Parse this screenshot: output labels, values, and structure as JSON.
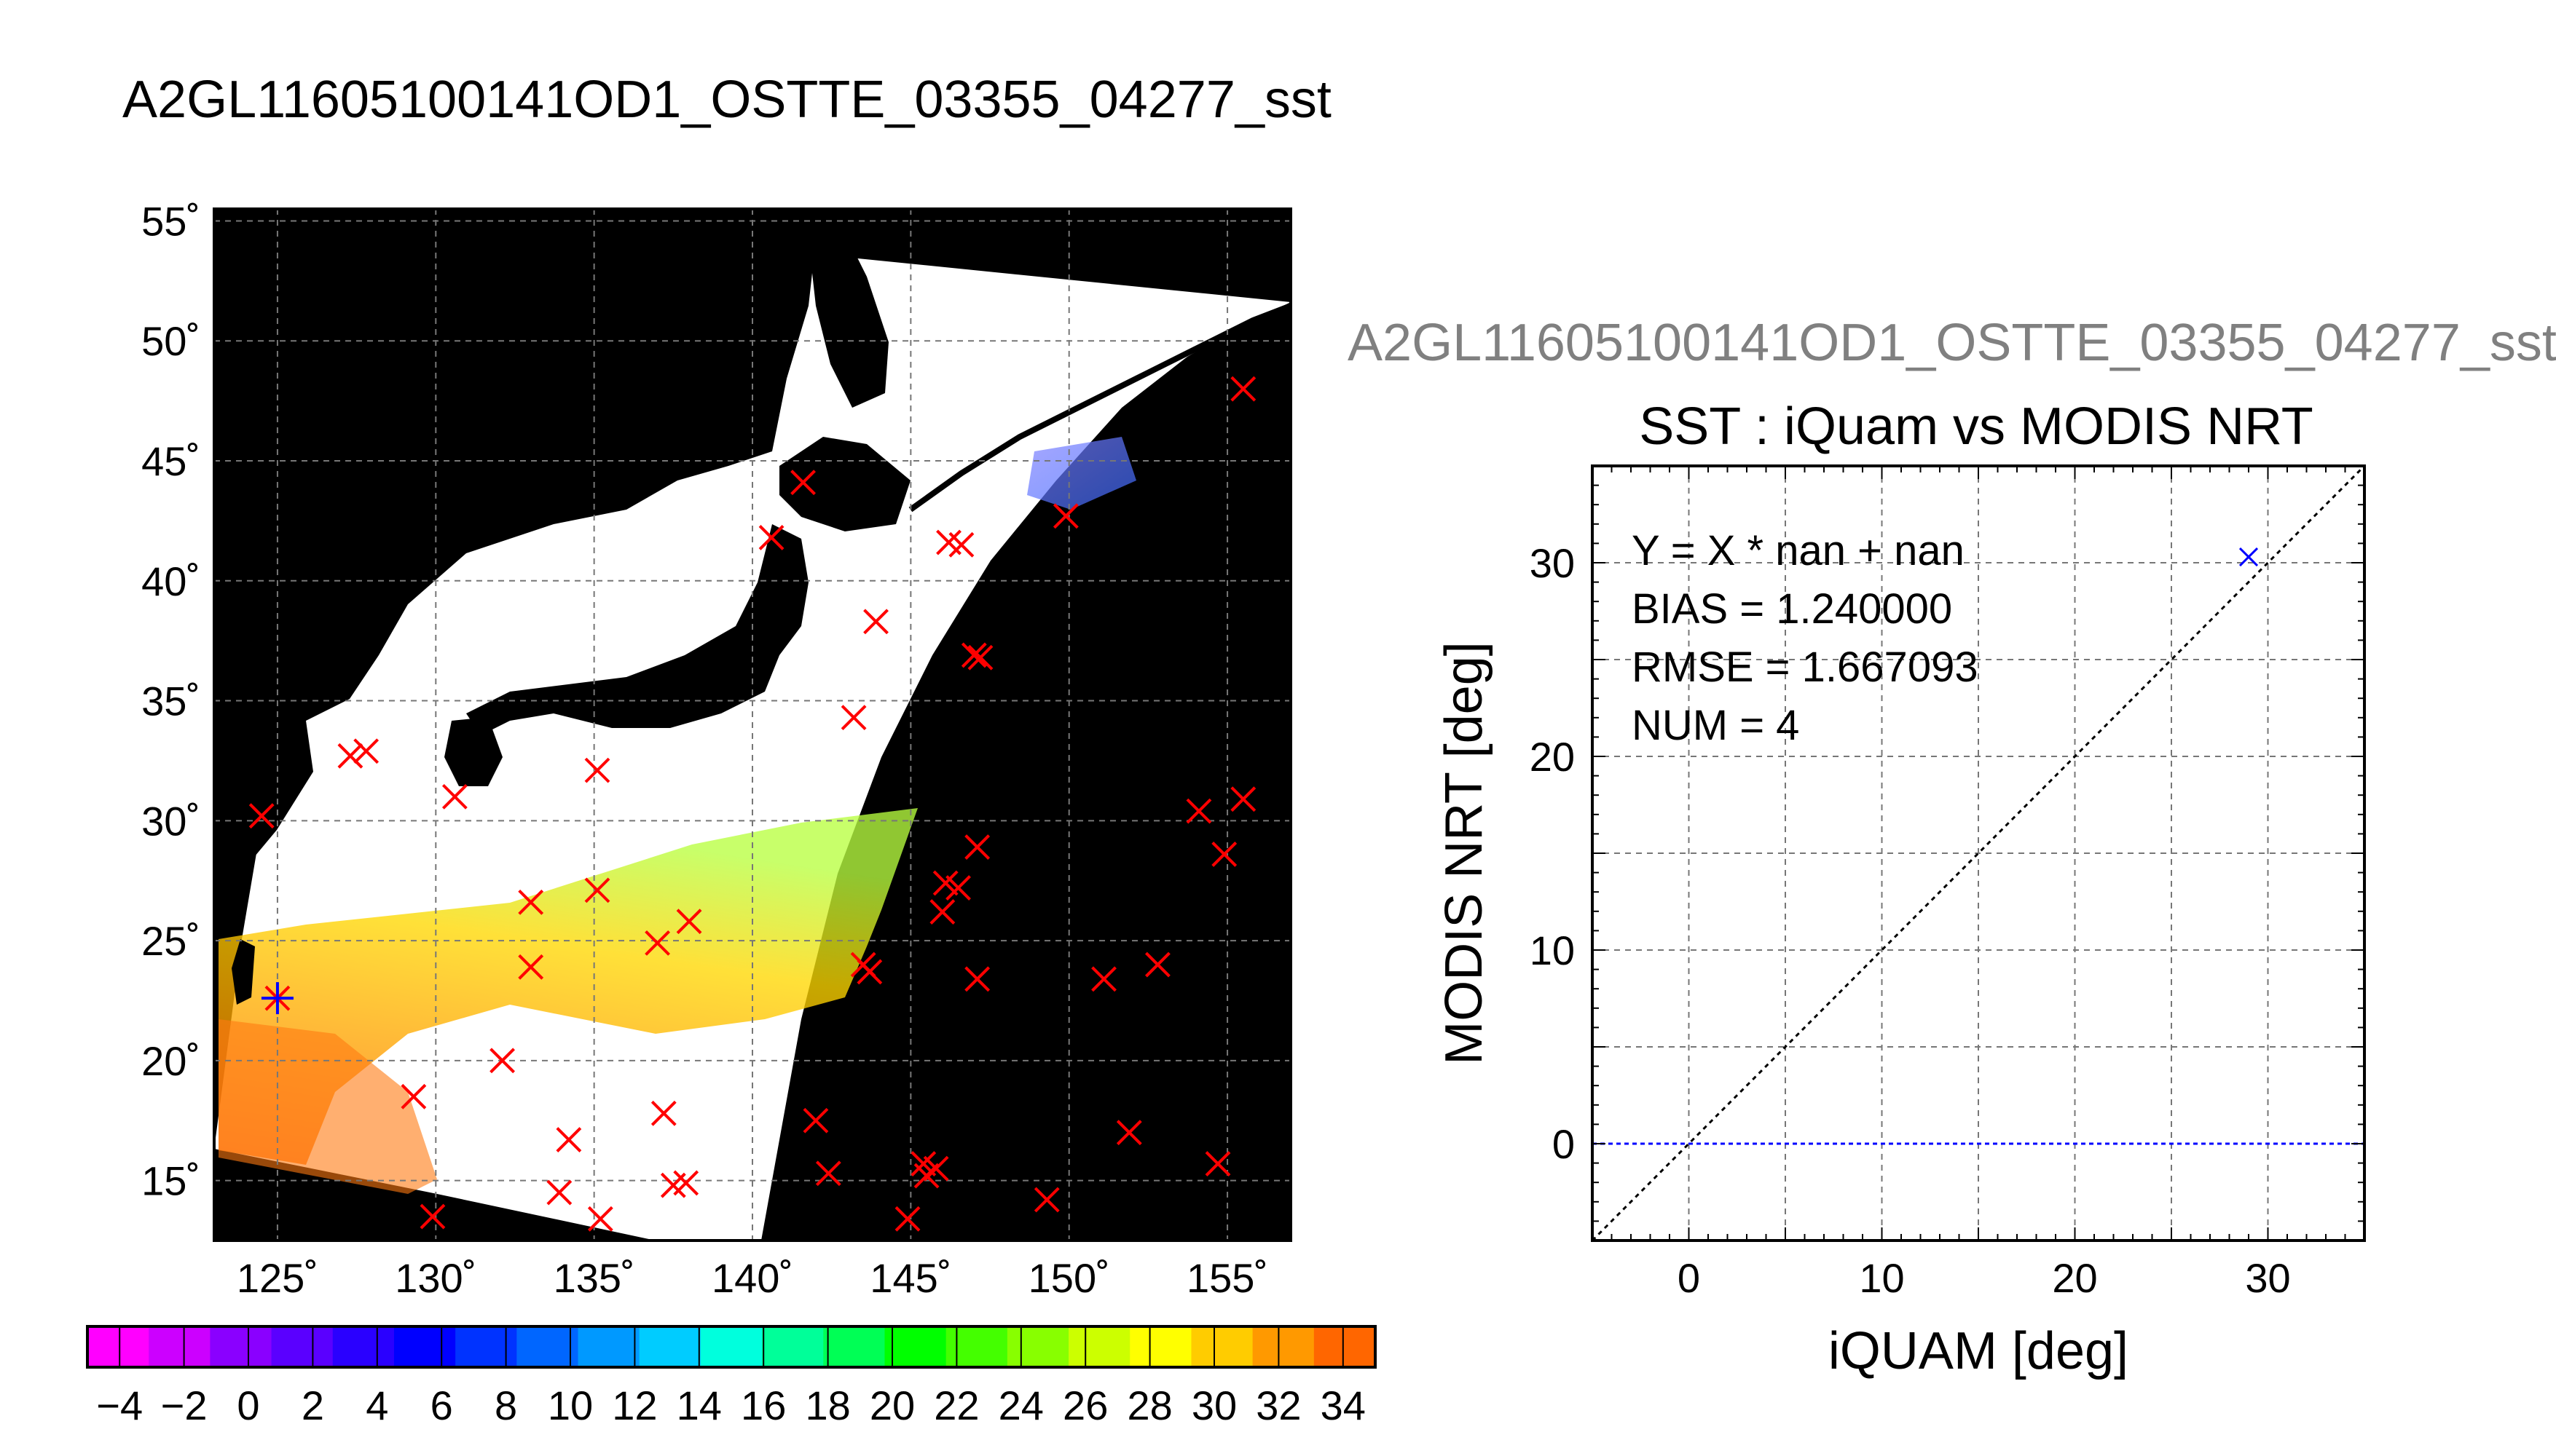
{
  "page_title": "A2GL11605100141OD1_OSTTE_03355_04277_sst",
  "page_subtitle": "A2GL11605100141OD1_OSTTE_03355_04277_sst",
  "chart_data": [
    {
      "type": "map",
      "lon_range": [
        123,
        157
      ],
      "lat_range": [
        12.5,
        55.5
      ],
      "lon_ticks": [
        125,
        130,
        135,
        140,
        145,
        150,
        155
      ],
      "lat_ticks": [
        15,
        20,
        25,
        30,
        35,
        40,
        45,
        50,
        55
      ],
      "lon_labels": [
        "125˚",
        "130˚",
        "135˚",
        "140˚",
        "145˚",
        "150˚",
        "155˚"
      ],
      "lat_labels": [
        "15˚",
        "20˚",
        "25˚",
        "30˚",
        "35˚",
        "40˚",
        "45˚",
        "50˚",
        "55˚"
      ],
      "grid": true,
      "background_color": "#000000",
      "swath_color": "#ffffff",
      "marker_color": "#ff0000",
      "matchup_color": "#0000ff",
      "matchup_point": [
        125.0,
        22.6
      ],
      "red_markers": [
        [
          124.5,
          30.2
        ],
        [
          127.3,
          32.7
        ],
        [
          127.8,
          32.9
        ],
        [
          130.6,
          31.0
        ],
        [
          135.1,
          32.1
        ],
        [
          133.0,
          26.6
        ],
        [
          135.1,
          27.1
        ],
        [
          137.0,
          24.9
        ],
        [
          138.0,
          25.8
        ],
        [
          133.0,
          23.9
        ],
        [
          132.1,
          20.0
        ],
        [
          129.3,
          18.5
        ],
        [
          129.9,
          13.5
        ],
        [
          134.2,
          16.7
        ],
        [
          133.9,
          14.5
        ],
        [
          135.2,
          13.4
        ],
        [
          137.2,
          17.8
        ],
        [
          137.5,
          14.8
        ],
        [
          137.9,
          14.9
        ],
        [
          142.0,
          17.5
        ],
        [
          142.4,
          15.3
        ],
        [
          143.5,
          24.0
        ],
        [
          143.7,
          23.7
        ],
        [
          145.4,
          15.7
        ],
        [
          145.5,
          15.2
        ],
        [
          145.8,
          15.5
        ],
        [
          144.9,
          13.4
        ],
        [
          146.1,
          27.4
        ],
        [
          146.5,
          27.2
        ],
        [
          146.0,
          26.2
        ],
        [
          147.1,
          28.9
        ],
        [
          147.1,
          23.4
        ],
        [
          149.3,
          14.2
        ],
        [
          151.1,
          23.4
        ],
        [
          151.9,
          17.0
        ],
        [
          152.8,
          24.0
        ],
        [
          154.1,
          30.4
        ],
        [
          154.9,
          28.6
        ],
        [
          155.5,
          30.9
        ],
        [
          154.7,
          15.7
        ],
        [
          143.2,
          34.3
        ],
        [
          143.9,
          38.3
        ],
        [
          146.2,
          41.6
        ],
        [
          146.6,
          41.5
        ],
        [
          147.0,
          36.9
        ],
        [
          147.2,
          36.8
        ],
        [
          149.9,
          42.7
        ],
        [
          141.6,
          44.1
        ],
        [
          140.6,
          41.8
        ],
        [
          155.5,
          48.0
        ]
      ]
    },
    {
      "type": "scatter",
      "title": "SST : iQuam vs MODIS NRT",
      "xlabel": "iQUAM [deg]",
      "ylabel": "MODIS NRT [deg]",
      "xlim": [
        -5,
        35
      ],
      "ylim": [
        -5,
        35
      ],
      "x_ticks": [
        0,
        10,
        20,
        30
      ],
      "y_ticks": [
        0,
        10,
        20,
        30
      ],
      "grid": true,
      "points": [
        {
          "x": 29.0,
          "y": 30.3
        }
      ],
      "point_color": "#0000ff",
      "reference_line": "y = x",
      "zero_line_color": "#0000ff",
      "stats": [
        "Y = X * nan + nan",
        "BIAS = 1.240000",
        "RMSE = 1.667093",
        "NUM = 4"
      ]
    },
    {
      "type": "colorbar",
      "range": [
        -5,
        35
      ],
      "tick_values": [
        -4,
        -2,
        0,
        2,
        4,
        6,
        8,
        10,
        12,
        14,
        16,
        18,
        20,
        22,
        24,
        26,
        28,
        30,
        32,
        34
      ],
      "tick_labels": [
        "−4",
        "−2",
        "0",
        "2",
        "4",
        "6",
        "8",
        "10",
        "12",
        "14",
        "16",
        "18",
        "20",
        "22",
        "24",
        "26",
        "28",
        "30",
        "32",
        "34"
      ],
      "colors": [
        "#ff00ff",
        "#cc00ff",
        "#8a00ff",
        "#5a00ff",
        "#2a00ff",
        "#0000ff",
        "#0033ff",
        "#0066ff",
        "#0099ff",
        "#00ccff",
        "#00ffdd",
        "#00ff99",
        "#00ff55",
        "#00ff00",
        "#44ff00",
        "#88ff00",
        "#ccff00",
        "#ffff00",
        "#ffcc00",
        "#ff9900",
        "#ff6600"
      ]
    }
  ]
}
